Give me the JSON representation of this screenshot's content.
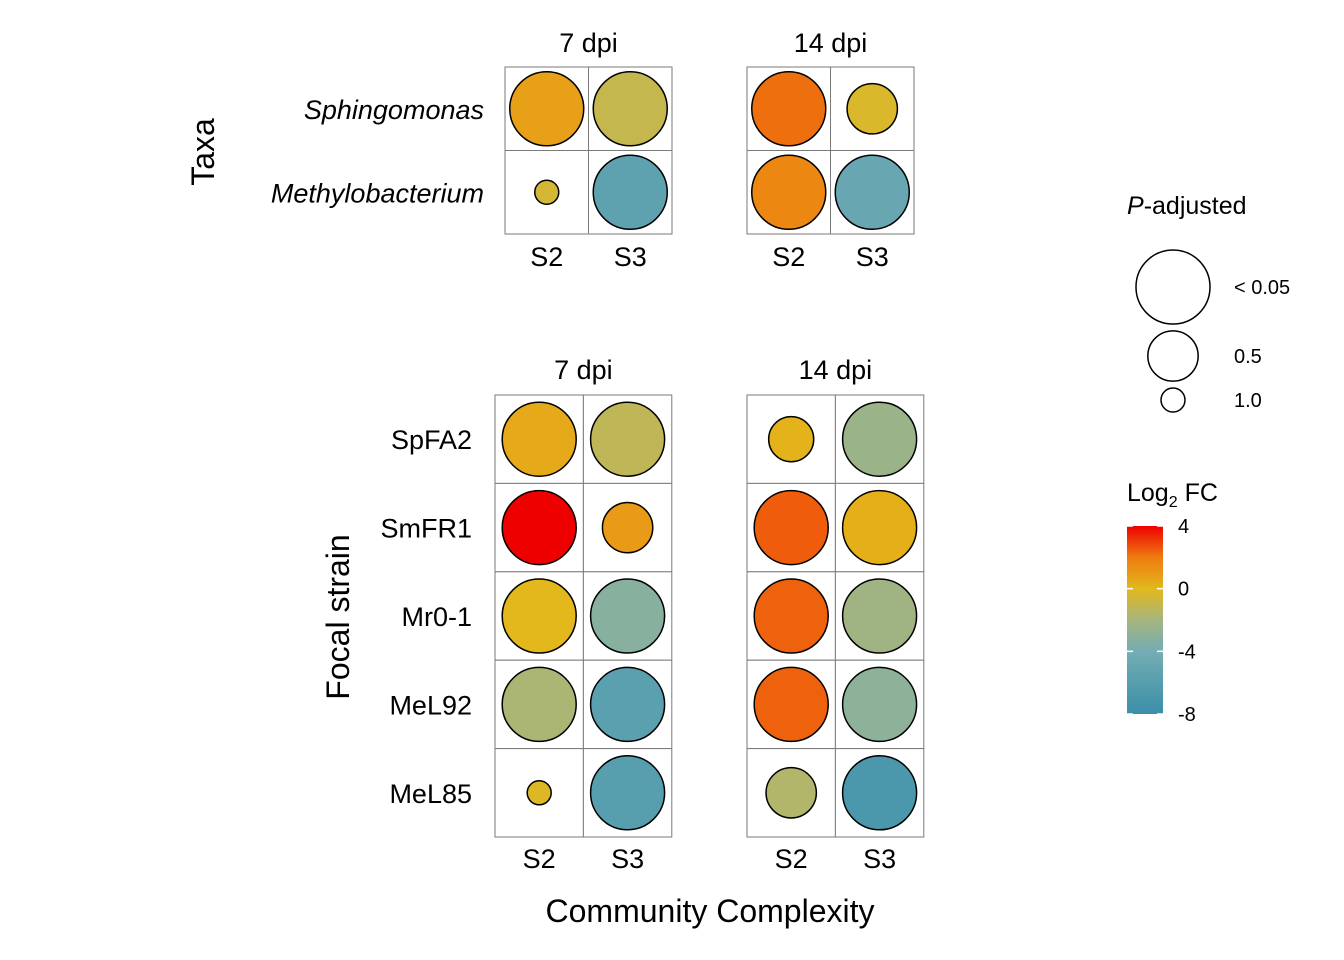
{
  "chart_data": [
    {
      "type": "bubble",
      "y_axis_title": "Taxa",
      "rows_italic": true,
      "rows": [
        "Sphingomonas",
        "Methylobacterium"
      ],
      "columns": [
        "S2",
        "S3"
      ],
      "facets": [
        {
          "title": "7 dpi",
          "points": [
            {
              "row": "Sphingomonas",
              "col": "S2",
              "log2fc": 0.8,
              "p_adjusted": 0.0
            },
            {
              "row": "Sphingomonas",
              "col": "S3",
              "log2fc": -1.0,
              "p_adjusted": 0.05
            },
            {
              "row": "Methylobacterium",
              "col": "S2",
              "log2fc": -0.5,
              "p_adjusted": 1.0
            },
            {
              "row": "Methylobacterium",
              "col": "S3",
              "log2fc": -5.5,
              "p_adjusted": 0.0
            }
          ]
        },
        {
          "title": "14 dpi",
          "points": [
            {
              "row": "Sphingomonas",
              "col": "S2",
              "log2fc": 2.2,
              "p_adjusted": 0.0
            },
            {
              "row": "Sphingomonas",
              "col": "S3",
              "log2fc": -0.3,
              "p_adjusted": 0.5
            },
            {
              "row": "Methylobacterium",
              "col": "S2",
              "log2fc": 1.6,
              "p_adjusted": 0.0
            },
            {
              "row": "Methylobacterium",
              "col": "S3",
              "log2fc": -4.8,
              "p_adjusted": 0.0
            }
          ]
        }
      ]
    },
    {
      "type": "bubble",
      "y_axis_title": "Focal strain",
      "x_axis_title": "Community Complexity",
      "rows_italic": false,
      "rows": [
        "SpFA2",
        "SmFR1",
        "Mr0-1",
        "MeL92",
        "MeL85"
      ],
      "columns": [
        "S2",
        "S3"
      ],
      "facets": [
        {
          "title": "7 dpi",
          "points": [
            {
              "row": "SpFA2",
              "col": "S2",
              "log2fc": 0.5,
              "p_adjusted": 0.0
            },
            {
              "row": "SpFA2",
              "col": "S3",
              "log2fc": -1.2,
              "p_adjusted": 0.0
            },
            {
              "row": "SmFR1",
              "col": "S2",
              "log2fc": 4.0,
              "p_adjusted": 0.0
            },
            {
              "row": "SmFR1",
              "col": "S3",
              "log2fc": 1.0,
              "p_adjusted": 0.5
            },
            {
              "row": "Mr0-1",
              "col": "S2",
              "log2fc": 0.0,
              "p_adjusted": 0.02
            },
            {
              "row": "Mr0-1",
              "col": "S3",
              "log2fc": -3.2,
              "p_adjusted": 0.0
            },
            {
              "row": "MeL92",
              "col": "S2",
              "log2fc": -1.8,
              "p_adjusted": 0.05
            },
            {
              "row": "MeL92",
              "col": "S3",
              "log2fc": -5.8,
              "p_adjusted": 0.0
            },
            {
              "row": "MeL85",
              "col": "S2",
              "log2fc": -0.2,
              "p_adjusted": 1.0
            },
            {
              "row": "MeL85",
              "col": "S3",
              "log2fc": -6.0,
              "p_adjusted": 0.0
            }
          ]
        },
        {
          "title": "14 dpi",
          "points": [
            {
              "row": "SpFA2",
              "col": "S2",
              "log2fc": 0.2,
              "p_adjusted": 0.6
            },
            {
              "row": "SpFA2",
              "col": "S3",
              "log2fc": -2.4,
              "p_adjusted": 0.0
            },
            {
              "row": "SmFR1",
              "col": "S2",
              "log2fc": 2.5,
              "p_adjusted": 0.0
            },
            {
              "row": "SmFR1",
              "col": "S3",
              "log2fc": 0.3,
              "p_adjusted": 0.0
            },
            {
              "row": "Mr0-1",
              "col": "S2",
              "log2fc": 2.4,
              "p_adjusted": 0.0
            },
            {
              "row": "Mr0-1",
              "col": "S3",
              "log2fc": -2.2,
              "p_adjusted": 0.0
            },
            {
              "row": "MeL92",
              "col": "S2",
              "log2fc": 2.4,
              "p_adjusted": 0.0
            },
            {
              "row": "MeL92",
              "col": "S3",
              "log2fc": -3.0,
              "p_adjusted": 0.0
            },
            {
              "row": "MeL85",
              "col": "S2",
              "log2fc": -1.6,
              "p_adjusted": 0.5
            },
            {
              "row": "MeL85",
              "col": "S3",
              "log2fc": -6.8,
              "p_adjusted": 0.0
            }
          ]
        }
      ]
    }
  ],
  "legend": {
    "size": {
      "title_italic_part": "P",
      "title_rest": "-adjusted",
      "entries": [
        {
          "label": "< 0.05",
          "p_adjusted": 0.0
        },
        {
          "label": "0.5",
          "p_adjusted": 0.5
        },
        {
          "label": "1.0",
          "p_adjusted": 1.0
        }
      ]
    },
    "color": {
      "title_main": "Log",
      "title_sub": "2",
      "title_rest": " FC",
      "limits": [
        -8,
        4
      ],
      "breaks": [
        "4",
        "0",
        "-4",
        "-8"
      ],
      "stops": [
        {
          "value": 4,
          "color": "#ee0000"
        },
        {
          "value": 2,
          "color": "#ee7b10"
        },
        {
          "value": 0,
          "color": "#e3b81c"
        },
        {
          "value": -2,
          "color": "#a5b57e"
        },
        {
          "value": -4,
          "color": "#74adb4"
        },
        {
          "value": -8,
          "color": "#3a8fa8"
        }
      ]
    }
  }
}
